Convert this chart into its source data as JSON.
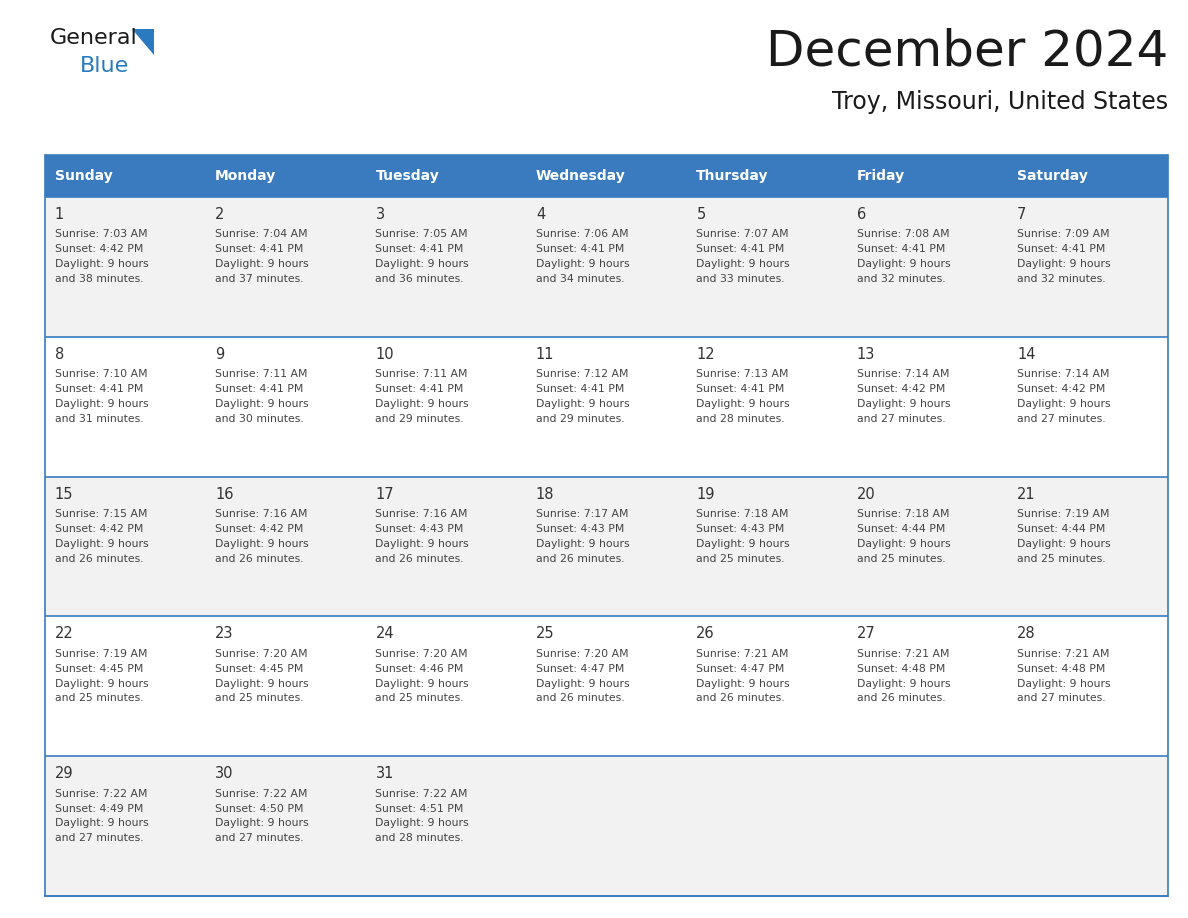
{
  "title": "December 2024",
  "subtitle": "Troy, Missouri, United States",
  "header_color": "#3A7BBF",
  "header_text_color": "#FFFFFF",
  "day_names": [
    "Sunday",
    "Monday",
    "Tuesday",
    "Wednesday",
    "Thursday",
    "Friday",
    "Saturday"
  ],
  "cell_bg_even": "#F2F2F2",
  "cell_bg_odd": "#FFFFFF",
  "border_color": "#3A7BBF",
  "day_num_color": "#333333",
  "text_color": "#444444",
  "days": [
    {
      "day": 1,
      "col": 0,
      "row": 0,
      "sunrise": "7:03 AM",
      "sunset": "4:42 PM",
      "daylight_l1": "Daylight: 9 hours",
      "daylight_l2": "and 38 minutes."
    },
    {
      "day": 2,
      "col": 1,
      "row": 0,
      "sunrise": "7:04 AM",
      "sunset": "4:41 PM",
      "daylight_l1": "Daylight: 9 hours",
      "daylight_l2": "and 37 minutes."
    },
    {
      "day": 3,
      "col": 2,
      "row": 0,
      "sunrise": "7:05 AM",
      "sunset": "4:41 PM",
      "daylight_l1": "Daylight: 9 hours",
      "daylight_l2": "and 36 minutes."
    },
    {
      "day": 4,
      "col": 3,
      "row": 0,
      "sunrise": "7:06 AM",
      "sunset": "4:41 PM",
      "daylight_l1": "Daylight: 9 hours",
      "daylight_l2": "and 34 minutes."
    },
    {
      "day": 5,
      "col": 4,
      "row": 0,
      "sunrise": "7:07 AM",
      "sunset": "4:41 PM",
      "daylight_l1": "Daylight: 9 hours",
      "daylight_l2": "and 33 minutes."
    },
    {
      "day": 6,
      "col": 5,
      "row": 0,
      "sunrise": "7:08 AM",
      "sunset": "4:41 PM",
      "daylight_l1": "Daylight: 9 hours",
      "daylight_l2": "and 32 minutes."
    },
    {
      "day": 7,
      "col": 6,
      "row": 0,
      "sunrise": "7:09 AM",
      "sunset": "4:41 PM",
      "daylight_l1": "Daylight: 9 hours",
      "daylight_l2": "and 32 minutes."
    },
    {
      "day": 8,
      "col": 0,
      "row": 1,
      "sunrise": "7:10 AM",
      "sunset": "4:41 PM",
      "daylight_l1": "Daylight: 9 hours",
      "daylight_l2": "and 31 minutes."
    },
    {
      "day": 9,
      "col": 1,
      "row": 1,
      "sunrise": "7:11 AM",
      "sunset": "4:41 PM",
      "daylight_l1": "Daylight: 9 hours",
      "daylight_l2": "and 30 minutes."
    },
    {
      "day": 10,
      "col": 2,
      "row": 1,
      "sunrise": "7:11 AM",
      "sunset": "4:41 PM",
      "daylight_l1": "Daylight: 9 hours",
      "daylight_l2": "and 29 minutes."
    },
    {
      "day": 11,
      "col": 3,
      "row": 1,
      "sunrise": "7:12 AM",
      "sunset": "4:41 PM",
      "daylight_l1": "Daylight: 9 hours",
      "daylight_l2": "and 29 minutes."
    },
    {
      "day": 12,
      "col": 4,
      "row": 1,
      "sunrise": "7:13 AM",
      "sunset": "4:41 PM",
      "daylight_l1": "Daylight: 9 hours",
      "daylight_l2": "and 28 minutes."
    },
    {
      "day": 13,
      "col": 5,
      "row": 1,
      "sunrise": "7:14 AM",
      "sunset": "4:42 PM",
      "daylight_l1": "Daylight: 9 hours",
      "daylight_l2": "and 27 minutes."
    },
    {
      "day": 14,
      "col": 6,
      "row": 1,
      "sunrise": "7:14 AM",
      "sunset": "4:42 PM",
      "daylight_l1": "Daylight: 9 hours",
      "daylight_l2": "and 27 minutes."
    },
    {
      "day": 15,
      "col": 0,
      "row": 2,
      "sunrise": "7:15 AM",
      "sunset": "4:42 PM",
      "daylight_l1": "Daylight: 9 hours",
      "daylight_l2": "and 26 minutes."
    },
    {
      "day": 16,
      "col": 1,
      "row": 2,
      "sunrise": "7:16 AM",
      "sunset": "4:42 PM",
      "daylight_l1": "Daylight: 9 hours",
      "daylight_l2": "and 26 minutes."
    },
    {
      "day": 17,
      "col": 2,
      "row": 2,
      "sunrise": "7:16 AM",
      "sunset": "4:43 PM",
      "daylight_l1": "Daylight: 9 hours",
      "daylight_l2": "and 26 minutes."
    },
    {
      "day": 18,
      "col": 3,
      "row": 2,
      "sunrise": "7:17 AM",
      "sunset": "4:43 PM",
      "daylight_l1": "Daylight: 9 hours",
      "daylight_l2": "and 26 minutes."
    },
    {
      "day": 19,
      "col": 4,
      "row": 2,
      "sunrise": "7:18 AM",
      "sunset": "4:43 PM",
      "daylight_l1": "Daylight: 9 hours",
      "daylight_l2": "and 25 minutes."
    },
    {
      "day": 20,
      "col": 5,
      "row": 2,
      "sunrise": "7:18 AM",
      "sunset": "4:44 PM",
      "daylight_l1": "Daylight: 9 hours",
      "daylight_l2": "and 25 minutes."
    },
    {
      "day": 21,
      "col": 6,
      "row": 2,
      "sunrise": "7:19 AM",
      "sunset": "4:44 PM",
      "daylight_l1": "Daylight: 9 hours",
      "daylight_l2": "and 25 minutes."
    },
    {
      "day": 22,
      "col": 0,
      "row": 3,
      "sunrise": "7:19 AM",
      "sunset": "4:45 PM",
      "daylight_l1": "Daylight: 9 hours",
      "daylight_l2": "and 25 minutes."
    },
    {
      "day": 23,
      "col": 1,
      "row": 3,
      "sunrise": "7:20 AM",
      "sunset": "4:45 PM",
      "daylight_l1": "Daylight: 9 hours",
      "daylight_l2": "and 25 minutes."
    },
    {
      "day": 24,
      "col": 2,
      "row": 3,
      "sunrise": "7:20 AM",
      "sunset": "4:46 PM",
      "daylight_l1": "Daylight: 9 hours",
      "daylight_l2": "and 25 minutes."
    },
    {
      "day": 25,
      "col": 3,
      "row": 3,
      "sunrise": "7:20 AM",
      "sunset": "4:47 PM",
      "daylight_l1": "Daylight: 9 hours",
      "daylight_l2": "and 26 minutes."
    },
    {
      "day": 26,
      "col": 4,
      "row": 3,
      "sunrise": "7:21 AM",
      "sunset": "4:47 PM",
      "daylight_l1": "Daylight: 9 hours",
      "daylight_l2": "and 26 minutes."
    },
    {
      "day": 27,
      "col": 5,
      "row": 3,
      "sunrise": "7:21 AM",
      "sunset": "4:48 PM",
      "daylight_l1": "Daylight: 9 hours",
      "daylight_l2": "and 26 minutes."
    },
    {
      "day": 28,
      "col": 6,
      "row": 3,
      "sunrise": "7:21 AM",
      "sunset": "4:48 PM",
      "daylight_l1": "Daylight: 9 hours",
      "daylight_l2": "and 27 minutes."
    },
    {
      "day": 29,
      "col": 0,
      "row": 4,
      "sunrise": "7:22 AM",
      "sunset": "4:49 PM",
      "daylight_l1": "Daylight: 9 hours",
      "daylight_l2": "and 27 minutes."
    },
    {
      "day": 30,
      "col": 1,
      "row": 4,
      "sunrise": "7:22 AM",
      "sunset": "4:50 PM",
      "daylight_l1": "Daylight: 9 hours",
      "daylight_l2": "and 27 minutes."
    },
    {
      "day": 31,
      "col": 2,
      "row": 4,
      "sunrise": "7:22 AM",
      "sunset": "4:51 PM",
      "daylight_l1": "Daylight: 9 hours",
      "daylight_l2": "and 28 minutes."
    }
  ],
  "fig_width": 11.88,
  "fig_height": 9.18,
  "dpi": 100
}
